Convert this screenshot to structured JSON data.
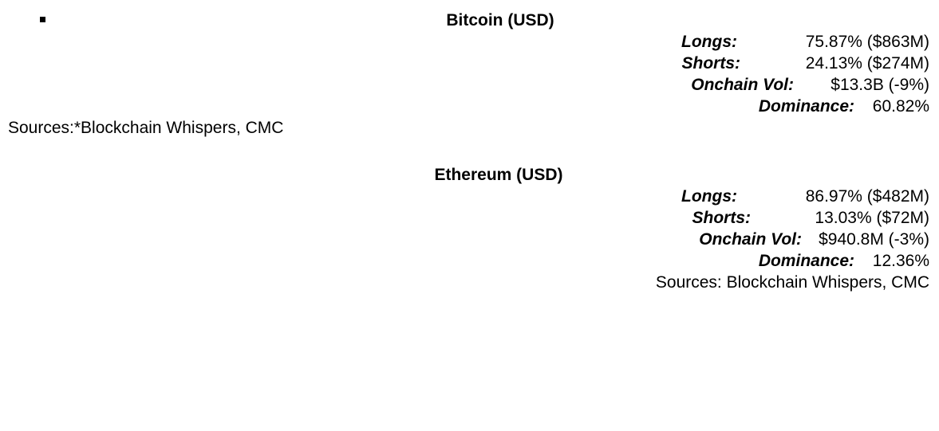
{
  "bitcoin": {
    "title": "Bitcoin (USD)",
    "longs_label": "Longs:",
    "longs_value": "75.87% ($863M)",
    "shorts_label": "Shorts:",
    "shorts_value": "24.13% ($274M)",
    "onchain_label": "Onchain Vol:",
    "onchain_value": "$13.3B (-9%)",
    "dominance_label": "Dominance:",
    "dominance_value": "60.82%",
    "sources": "Sources:*Blockchain Whispers, CMC"
  },
  "ethereum": {
    "title": "Ethereum (USD)",
    "longs_label": "Longs:",
    "longs_value": "86.97% ($482M)",
    "shorts_label": "Shorts:",
    "shorts_value": "13.03% ($72M)",
    "onchain_label": "Onchain Vol:",
    "onchain_value": "$940.8M (-3%)",
    "dominance_label": "Dominance:",
    "dominance_value": "12.36%",
    "sources": "Sources: Blockchain Whispers, CMC"
  }
}
